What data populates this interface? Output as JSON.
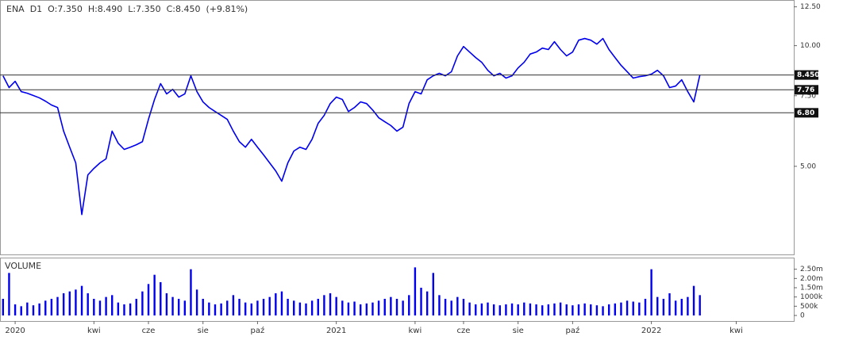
{
  "chart_data": [
    {
      "type": "line",
      "title": "ENA  D1  O:7.350  H:8.490  L:7.350  C:8.450  (+9.81%)",
      "color": "#0000ee",
      "log_scale": true,
      "ylim": [
        3,
        13
      ],
      "yticks": [
        {
          "value": 12.5,
          "label": "12.50"
        },
        {
          "value": 10,
          "label": "10.00"
        },
        {
          "value": 7.5,
          "label": "7.50"
        },
        {
          "value": 5,
          "label": "5.00"
        }
      ],
      "levels": {
        "values": [
          8.45,
          7.76,
          6.8
        ],
        "value_labels": [
          "8.450",
          "7.76",
          "6.80"
        ]
      },
      "values": [
        8.41,
        7.86,
        8.15,
        7.68,
        7.61,
        7.51,
        7.41,
        7.27,
        7.11,
        7.01,
        6.12,
        5.58,
        5.1,
        3.79,
        4.76,
        4.94,
        5.1,
        5.22,
        6.12,
        5.71,
        5.51,
        5.58,
        5.66,
        5.76,
        6.55,
        7.34,
        8.04,
        7.58,
        7.78,
        7.44,
        7.58,
        8.41,
        7.68,
        7.24,
        7.01,
        6.85,
        6.7,
        6.55,
        6.12,
        5.76,
        5.58,
        5.84,
        5.58,
        5.34,
        5.1,
        4.87,
        4.59,
        5.1,
        5.46,
        5.58,
        5.51,
        5.84,
        6.4,
        6.7,
        7.17,
        7.44,
        7.34,
        6.85,
        7.01,
        7.24,
        7.17,
        6.91,
        6.61,
        6.46,
        6.32,
        6.12,
        6.26,
        7.17,
        7.68,
        7.58,
        8.22,
        8.41,
        8.53,
        8.41,
        8.61,
        9.43,
        9.95,
        9.64,
        9.34,
        9.09,
        8.68,
        8.41,
        8.53,
        8.3,
        8.41,
        8.8,
        9.09,
        9.53,
        9.64,
        9.86,
        9.78,
        10.23,
        9.78,
        9.43,
        9.64,
        10.32,
        10.42,
        10.32,
        10.09,
        10.42,
        9.78,
        9.34,
        8.93,
        8.61,
        8.3,
        8.37,
        8.41,
        8.49,
        8.68,
        8.41,
        7.86,
        7.93,
        8.22,
        7.68,
        7.24,
        8.45,
        null,
        null,
        null,
        null,
        null,
        null,
        null,
        null,
        null,
        null,
        null,
        null,
        null,
        null,
        null
      ]
    },
    {
      "type": "bar",
      "title": "VOLUME",
      "color": "#0000ee",
      "ylim": [
        0,
        3000000
      ],
      "yticks": [
        {
          "value": 2500000,
          "label": "2.50m"
        },
        {
          "value": 2000000,
          "label": "2.00m"
        },
        {
          "value": 1500000,
          "label": "1.50m"
        },
        {
          "value": 1000000,
          "label": "1000k"
        },
        {
          "value": 500000,
          "label": "500k"
        },
        0
      ],
      "categories": [
        null,
        null,
        "2020",
        null,
        null,
        null,
        null,
        null,
        null,
        null,
        null,
        null,
        null,
        null,
        null,
        "kwi",
        null,
        null,
        null,
        null,
        null,
        null,
        null,
        null,
        "cze",
        null,
        null,
        null,
        null,
        null,
        null,
        null,
        null,
        "sie",
        null,
        null,
        null,
        null,
        null,
        null,
        null,
        null,
        "paź",
        null,
        null,
        null,
        null,
        null,
        null,
        null,
        null,
        null,
        null,
        null,
        null,
        "2021",
        null,
        null,
        null,
        null,
        null,
        null,
        null,
        null,
        null,
        null,
        null,
        null,
        "kwi",
        null,
        null,
        null,
        null,
        null,
        null,
        null,
        "cze",
        null,
        null,
        null,
        null,
        null,
        null,
        null,
        null,
        "sie",
        null,
        null,
        null,
        null,
        null,
        null,
        null,
        null,
        "paź",
        null,
        null,
        null,
        null,
        null,
        null,
        null,
        null,
        null,
        null,
        null,
        null,
        "2022",
        null,
        null,
        null,
        null,
        null,
        null,
        null,
        null,
        null,
        null,
        null,
        null,
        null,
        "kwi",
        null,
        null,
        null,
        null,
        null,
        null,
        null,
        null,
        null
      ],
      "values": [
        900000,
        2300000,
        600000,
        500000,
        700000,
        550000,
        650000,
        800000,
        900000,
        1000000,
        1200000,
        1300000,
        1400000,
        1600000,
        1200000,
        900000,
        800000,
        1000000,
        1100000,
        700000,
        600000,
        650000,
        900000,
        1300000,
        1700000,
        2200000,
        1800000,
        1200000,
        1000000,
        900000,
        800000,
        2500000,
        1400000,
        900000,
        700000,
        600000,
        650000,
        800000,
        1100000,
        900000,
        700000,
        650000,
        800000,
        900000,
        1000000,
        1200000,
        1300000,
        900000,
        800000,
        700000,
        650000,
        800000,
        900000,
        1100000,
        1200000,
        1000000,
        800000,
        700000,
        750000,
        600000,
        650000,
        700000,
        800000,
        900000,
        1000000,
        900000,
        800000,
        1100000,
        2600000,
        1500000,
        1300000,
        2300000,
        1100000,
        900000,
        800000,
        1000000,
        900000,
        700000,
        600000,
        650000,
        700000,
        600000,
        550000,
        600000,
        650000,
        600000,
        700000,
        650000,
        600000,
        550000,
        600000,
        650000,
        700000,
        600000,
        550000,
        600000,
        650000,
        600000,
        550000,
        500000,
        600000,
        650000,
        700000,
        800000,
        750000,
        700000,
        900000,
        2500000,
        1000000,
        900000,
        1200000,
        800000,
        900000,
        1000000,
        1600000,
        1100000,
        null,
        null,
        null,
        null,
        null,
        null,
        null,
        null,
        null,
        null,
        null,
        null,
        null,
        null,
        null
      ]
    }
  ]
}
